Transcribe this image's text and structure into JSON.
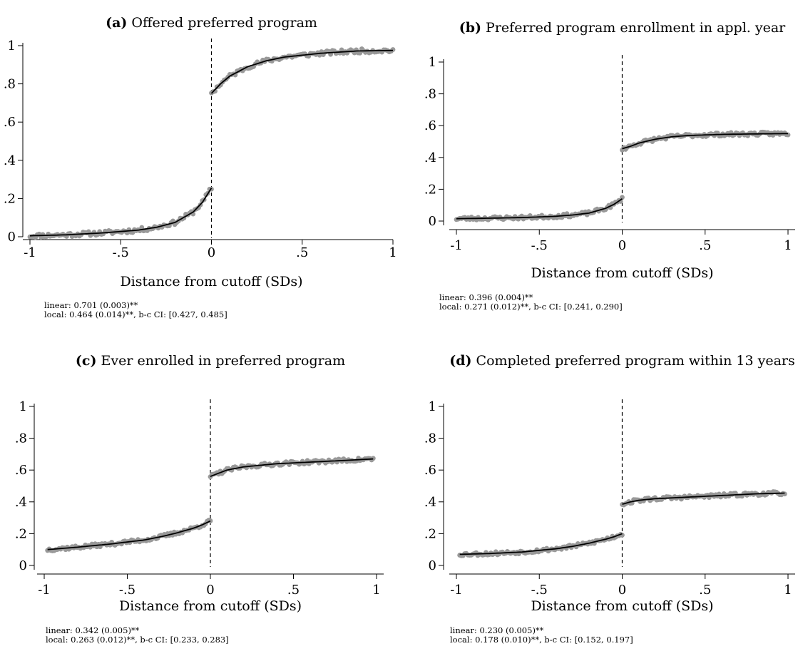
{
  "chart_data": [
    {
      "type": "scatter",
      "panel_label": "(a)",
      "title": "Offered preferred program",
      "xlabel": "Distance from cutoff (SDs)",
      "ylabel": "",
      "xlim": [
        -1,
        1
      ],
      "ylim": [
        0,
        1
      ],
      "x_ticks": [
        "-1",
        "-.5",
        "0",
        ".5",
        "1"
      ],
      "y_ticks": [
        "0",
        ".2",
        ".4",
        ".6",
        ".8",
        "1"
      ],
      "cutoff_x": 0,
      "marker_color": "#999999",
      "fit_color": "#000000",
      "left_fit": {
        "x": [
          -1,
          -0.8,
          -0.6,
          -0.4,
          -0.3,
          -0.2,
          -0.1,
          -0.05,
          0
        ],
        "y": [
          0.005,
          0.01,
          0.02,
          0.035,
          0.05,
          0.075,
          0.13,
          0.18,
          0.255
        ]
      },
      "right_fit": {
        "x": [
          0,
          0.05,
          0.1,
          0.2,
          0.3,
          0.4,
          0.6,
          0.8,
          1
        ],
        "y": [
          0.75,
          0.8,
          0.84,
          0.89,
          0.92,
          0.94,
          0.96,
          0.972,
          0.975
        ]
      },
      "notes": [
        "linear: 0.701 (0.003)**",
        "local: 0.464 (0.014)**, b-c CI: [0.427, 0.485]"
      ]
    },
    {
      "type": "scatter",
      "panel_label": "(b)",
      "title": "Preferred program enrollment in appl. year",
      "xlabel": "Distance from cutoff (SDs)",
      "ylabel": "",
      "xlim": [
        -1,
        1
      ],
      "ylim": [
        0,
        1
      ],
      "x_ticks": [
        "-1",
        "-.5",
        "0",
        ".5",
        "1"
      ],
      "y_ticks": [
        "0",
        ".2",
        ".4",
        ".6",
        ".8",
        "1"
      ],
      "cutoff_x": 0,
      "marker_color": "#999999",
      "fit_color": "#000000",
      "left_fit": {
        "x": [
          -1,
          -0.8,
          -0.6,
          -0.4,
          -0.3,
          -0.2,
          -0.1,
          -0.05,
          0
        ],
        "y": [
          0.015,
          0.018,
          0.022,
          0.03,
          0.038,
          0.05,
          0.08,
          0.105,
          0.14
        ]
      },
      "right_fit": {
        "x": [
          0,
          0.05,
          0.1,
          0.2,
          0.3,
          0.4,
          0.6,
          0.8,
          1
        ],
        "y": [
          0.455,
          0.47,
          0.49,
          0.515,
          0.53,
          0.538,
          0.545,
          0.548,
          0.55
        ]
      },
      "notes": [
        "linear: 0.396 (0.004)**",
        "local: 0.271 (0.012)**, b-c CI: [0.241, 0.290]"
      ]
    },
    {
      "type": "scatter",
      "panel_label": "(c)",
      "title": "Ever enrolled in preferred program",
      "xlabel": "Distance from cutoff (SDs)",
      "ylabel": "",
      "xlim": [
        -1,
        1
      ],
      "ylim": [
        0,
        1
      ],
      "x_ticks": [
        "-1",
        "-.5",
        "0",
        ".5",
        "1"
      ],
      "y_ticks": [
        "0",
        ".2",
        ".4",
        ".6",
        ".8",
        "1"
      ],
      "cutoff_x": 0,
      "marker_color": "#999999",
      "fit_color": "#000000",
      "left_fit": {
        "x": [
          -0.98,
          -0.8,
          -0.6,
          -0.4,
          -0.3,
          -0.2,
          -0.1,
          -0.05,
          0
        ],
        "y": [
          0.1,
          0.115,
          0.135,
          0.16,
          0.18,
          0.205,
          0.235,
          0.255,
          0.28
        ]
      },
      "right_fit": {
        "x": [
          0,
          0.05,
          0.1,
          0.2,
          0.3,
          0.4,
          0.6,
          0.8,
          0.98
        ],
        "y": [
          0.56,
          0.58,
          0.6,
          0.62,
          0.63,
          0.64,
          0.65,
          0.66,
          0.67
        ]
      },
      "notes": [
        "linear: 0.342 (0.005)**",
        "local: 0.263 (0.012)**, b-c CI: [0.233, 0.283]"
      ]
    },
    {
      "type": "scatter",
      "panel_label": "(d)",
      "title": "Completed preferred program within 13 years",
      "xlabel": "Distance from cutoff (SDs)",
      "ylabel": "",
      "xlim": [
        -1,
        1
      ],
      "ylim": [
        0,
        1
      ],
      "x_ticks": [
        "-1",
        "-.5",
        "0",
        ".5",
        "1"
      ],
      "y_ticks": [
        "0",
        ".2",
        ".4",
        ".6",
        ".8",
        "1"
      ],
      "cutoff_x": 0,
      "marker_color": "#999999",
      "fit_color": "#000000",
      "left_fit": {
        "x": [
          -0.98,
          -0.8,
          -0.6,
          -0.4,
          -0.3,
          -0.2,
          -0.1,
          -0.05,
          0
        ],
        "y": [
          0.07,
          0.075,
          0.085,
          0.105,
          0.12,
          0.14,
          0.165,
          0.18,
          0.2
        ]
      },
      "right_fit": {
        "x": [
          0,
          0.05,
          0.1,
          0.2,
          0.3,
          0.4,
          0.6,
          0.8,
          0.98
        ],
        "y": [
          0.385,
          0.4,
          0.41,
          0.42,
          0.425,
          0.43,
          0.44,
          0.45,
          0.455
        ]
      },
      "notes": [
        "linear: 0.230 (0.005)**",
        "local: 0.178 (0.010)**, b-c CI: [0.152, 0.197]"
      ]
    }
  ]
}
